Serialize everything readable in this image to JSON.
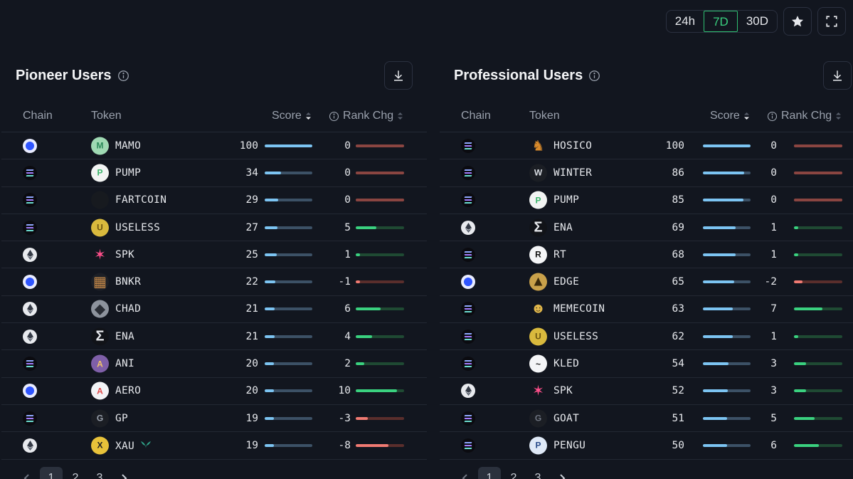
{
  "controls": {
    "periods": [
      {
        "label": "24h",
        "active": false
      },
      {
        "label": "7D",
        "active": true
      },
      {
        "label": "30D",
        "active": false
      }
    ]
  },
  "columns": {
    "chain": "Chain",
    "token": "Token",
    "score": "Score",
    "rank_chg": "Rank Chg"
  },
  "colors": {
    "score_bar_track": "#3c5166",
    "score_bar_fill": "#7cc4f2",
    "positive": "#3ad17f",
    "negative": "#f07a72",
    "zero": "#8a4541"
  },
  "panels": [
    {
      "title": "Pioneer Users",
      "pages": [
        "1",
        "2",
        "3"
      ],
      "current_page": "1",
      "rows": [
        {
          "chain": "base",
          "token": "MAMO",
          "score": "100",
          "rank_chg": "0"
        },
        {
          "chain": "solana",
          "token": "PUMP",
          "score": "34",
          "rank_chg": "0"
        },
        {
          "chain": "solana",
          "token": "FARTCOIN",
          "score": "29",
          "rank_chg": "0"
        },
        {
          "chain": "solana",
          "token": "USELESS",
          "score": "27",
          "rank_chg": "5"
        },
        {
          "chain": "ethereum",
          "token": "SPK",
          "score": "25",
          "rank_chg": "1"
        },
        {
          "chain": "base",
          "token": "BNKR",
          "score": "22",
          "rank_chg": "-1"
        },
        {
          "chain": "ethereum",
          "token": "CHAD",
          "score": "21",
          "rank_chg": "6"
        },
        {
          "chain": "ethereum",
          "token": "ENA",
          "score": "21",
          "rank_chg": "4"
        },
        {
          "chain": "solana",
          "token": "ANI",
          "score": "20",
          "rank_chg": "2"
        },
        {
          "chain": "base",
          "token": "AERO",
          "score": "20",
          "rank_chg": "10"
        },
        {
          "chain": "solana",
          "token": "GP",
          "score": "19",
          "rank_chg": "-3"
        },
        {
          "chain": "ethereum",
          "token": "XAU",
          "score": "19",
          "rank_chg": "-8",
          "badge": "leaf-icon"
        }
      ]
    },
    {
      "title": "Professional Users",
      "pages": [
        "1",
        "2",
        "3"
      ],
      "current_page": "1",
      "rows": [
        {
          "chain": "solana",
          "token": "HOSICO",
          "score": "100",
          "rank_chg": "0"
        },
        {
          "chain": "solana",
          "token": "WINTER",
          "score": "86",
          "rank_chg": "0"
        },
        {
          "chain": "solana",
          "token": "PUMP",
          "score": "85",
          "rank_chg": "0"
        },
        {
          "chain": "ethereum",
          "token": "ENA",
          "score": "69",
          "rank_chg": "1"
        },
        {
          "chain": "solana",
          "token": "RT",
          "score": "68",
          "rank_chg": "1"
        },
        {
          "chain": "base",
          "token": "EDGE",
          "score": "65",
          "rank_chg": "-2"
        },
        {
          "chain": "solana",
          "token": "MEMECOIN",
          "score": "63",
          "rank_chg": "7"
        },
        {
          "chain": "solana",
          "token": "USELESS",
          "score": "62",
          "rank_chg": "1"
        },
        {
          "chain": "solana",
          "token": "KLED",
          "score": "54",
          "rank_chg": "3"
        },
        {
          "chain": "ethereum",
          "token": "SPK",
          "score": "52",
          "rank_chg": "3"
        },
        {
          "chain": "solana",
          "token": "GOAT",
          "score": "51",
          "rank_chg": "5"
        },
        {
          "chain": "solana",
          "token": "PENGU",
          "score": "50",
          "rank_chg": "6"
        }
      ]
    }
  ]
}
